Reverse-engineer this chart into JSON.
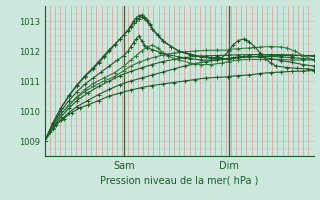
{
  "bg_color": "#cce8dc",
  "grid_color_v": "#e08080",
  "grid_color_h": "#a8d4bc",
  "line_color_dark": "#1a5c28",
  "line_color_medium": "#2d7a3e",
  "ylabel": "Pression niveau de la mer( hPa )",
  "x_tick_labels": [
    "Sam",
    "Dim"
  ],
  "x_tick_positions": [
    0.295,
    0.685
  ],
  "ylim": [
    1008.5,
    1013.5
  ],
  "yticks": [
    1009,
    1010,
    1011,
    1012
  ],
  "y_top_label": "1013",
  "vline_color": "#3a6040",
  "series": [
    [
      0.0,
      1009.0,
      0.02,
      1009.3,
      0.04,
      1009.55,
      0.07,
      1009.75,
      0.1,
      1009.95,
      0.13,
      1010.1,
      0.16,
      1010.2,
      0.2,
      1010.35,
      0.24,
      1010.5,
      0.28,
      1010.6,
      0.32,
      1010.7,
      0.36,
      1010.78,
      0.4,
      1010.85,
      0.44,
      1010.9,
      0.48,
      1010.95,
      0.52,
      1011.0,
      0.56,
      1011.05,
      0.6,
      1011.1,
      0.64,
      1011.12,
      0.68,
      1011.14,
      0.685,
      1011.15,
      0.72,
      1011.18,
      0.76,
      1011.2,
      0.8,
      1011.25,
      0.84,
      1011.28,
      0.88,
      1011.3,
      0.92,
      1011.32,
      0.96,
      1011.33,
      1.0,
      1011.35
    ],
    [
      0.0,
      1009.0,
      0.03,
      1009.4,
      0.06,
      1009.7,
      0.09,
      1009.95,
      0.12,
      1010.15,
      0.16,
      1010.35,
      0.2,
      1010.55,
      0.24,
      1010.72,
      0.28,
      1010.88,
      0.32,
      1011.0,
      0.36,
      1011.1,
      0.4,
      1011.2,
      0.44,
      1011.3,
      0.48,
      1011.4,
      0.52,
      1011.5,
      0.56,
      1011.58,
      0.6,
      1011.65,
      0.64,
      1011.7,
      0.68,
      1011.74,
      0.685,
      1011.75,
      0.72,
      1011.78,
      0.76,
      1011.8,
      0.8,
      1011.82,
      0.84,
      1011.84,
      0.88,
      1011.85,
      0.92,
      1011.85,
      0.96,
      1011.85,
      1.0,
      1011.85
    ],
    [
      0.0,
      1009.0,
      0.03,
      1009.45,
      0.06,
      1009.8,
      0.09,
      1010.1,
      0.12,
      1010.35,
      0.16,
      1010.6,
      0.2,
      1010.82,
      0.24,
      1011.0,
      0.28,
      1011.18,
      0.32,
      1011.32,
      0.36,
      1011.44,
      0.4,
      1011.55,
      0.44,
      1011.65,
      0.48,
      1011.72,
      0.52,
      1011.78,
      0.56,
      1011.82,
      0.6,
      1011.84,
      0.64,
      1011.85,
      0.68,
      1011.86,
      0.685,
      1011.87,
      0.72,
      1011.87,
      0.76,
      1011.88,
      0.8,
      1011.88,
      0.84,
      1011.88,
      0.88,
      1011.88,
      0.92,
      1011.87,
      0.96,
      1011.85,
      1.0,
      1011.82
    ],
    [
      0.0,
      1009.0,
      0.03,
      1009.5,
      0.06,
      1009.9,
      0.09,
      1010.2,
      0.12,
      1010.45,
      0.15,
      1010.65,
      0.18,
      1010.82,
      0.22,
      1011.0,
      0.26,
      1011.15,
      0.295,
      1011.35,
      0.32,
      1011.5,
      0.35,
      1011.62,
      0.38,
      1011.72,
      0.41,
      1011.8,
      0.44,
      1011.87,
      0.48,
      1011.93,
      0.52,
      1011.97,
      0.56,
      1012.0,
      0.6,
      1012.02,
      0.64,
      1012.03,
      0.68,
      1012.03,
      0.685,
      1012.05,
      0.72,
      1012.08,
      0.76,
      1012.1,
      0.8,
      1012.13,
      0.84,
      1012.15,
      0.88,
      1012.13,
      0.9,
      1012.1,
      0.93,
      1012.0,
      0.96,
      1011.85,
      1.0,
      1011.7
    ],
    [
      0.0,
      1009.0,
      0.03,
      1009.5,
      0.06,
      1009.9,
      0.09,
      1010.2,
      0.12,
      1010.48,
      0.15,
      1010.72,
      0.18,
      1010.92,
      0.22,
      1011.1,
      0.26,
      1011.28,
      0.295,
      1011.5,
      0.32,
      1011.7,
      0.34,
      1011.85,
      0.36,
      1012.0,
      0.38,
      1012.12,
      0.4,
      1012.2,
      0.42,
      1012.1,
      0.44,
      1011.95,
      0.46,
      1011.82,
      0.5,
      1011.7,
      0.54,
      1011.6,
      0.58,
      1011.55,
      0.62,
      1011.55,
      0.66,
      1011.6,
      0.685,
      1011.65,
      0.72,
      1011.7,
      0.76,
      1011.72,
      0.8,
      1011.72,
      0.84,
      1011.72,
      0.88,
      1011.72,
      0.92,
      1011.7,
      0.96,
      1011.7,
      1.0,
      1011.7
    ],
    [
      0.0,
      1009.0,
      0.03,
      1009.55,
      0.06,
      1010.0,
      0.09,
      1010.35,
      0.12,
      1010.65,
      0.15,
      1010.9,
      0.18,
      1011.1,
      0.21,
      1011.3,
      0.24,
      1011.5,
      0.27,
      1011.7,
      0.295,
      1011.85,
      0.31,
      1012.0,
      0.32,
      1012.15,
      0.33,
      1012.28,
      0.34,
      1012.4,
      0.35,
      1012.5,
      0.36,
      1012.35,
      0.37,
      1012.2,
      0.38,
      1012.1,
      0.4,
      1012.05,
      0.43,
      1011.95,
      0.46,
      1011.88,
      0.5,
      1011.8,
      0.54,
      1011.75,
      0.58,
      1011.7,
      0.62,
      1011.7,
      0.66,
      1011.72,
      0.685,
      1011.75,
      0.72,
      1011.8,
      0.76,
      1011.82,
      0.8,
      1011.82,
      0.84,
      1011.82,
      0.88,
      1011.8,
      0.92,
      1011.78,
      0.96,
      1011.75,
      1.0,
      1011.72
    ],
    [
      0.0,
      1009.0,
      0.03,
      1009.6,
      0.06,
      1010.1,
      0.09,
      1010.5,
      0.12,
      1010.85,
      0.15,
      1011.15,
      0.18,
      1011.4,
      0.2,
      1011.6,
      0.22,
      1011.8,
      0.24,
      1012.0,
      0.26,
      1012.2,
      0.28,
      1012.4,
      0.295,
      1012.55,
      0.31,
      1012.7,
      0.32,
      1012.85,
      0.33,
      1013.0,
      0.34,
      1013.1,
      0.35,
      1013.18,
      0.36,
      1013.2,
      0.37,
      1013.15,
      0.38,
      1013.05,
      0.39,
      1012.9,
      0.4,
      1012.75,
      0.42,
      1012.55,
      0.44,
      1012.35,
      0.47,
      1012.15,
      0.5,
      1012.0,
      0.54,
      1011.9,
      0.58,
      1011.82,
      0.62,
      1011.78,
      0.66,
      1011.78,
      0.685,
      1012.0,
      0.7,
      1012.2,
      0.72,
      1012.35,
      0.74,
      1012.4,
      0.75,
      1012.38,
      0.76,
      1012.3,
      0.78,
      1012.15,
      0.8,
      1011.95,
      0.82,
      1011.75,
      0.84,
      1011.6,
      0.86,
      1011.5,
      0.9,
      1011.45,
      0.94,
      1011.42,
      0.98,
      1011.4,
      1.0,
      1011.38
    ],
    [
      0.0,
      1009.0,
      0.03,
      1009.6,
      0.06,
      1010.1,
      0.09,
      1010.52,
      0.12,
      1010.88,
      0.15,
      1011.18,
      0.18,
      1011.45,
      0.2,
      1011.65,
      0.22,
      1011.85,
      0.24,
      1012.05,
      0.26,
      1012.22,
      0.28,
      1012.4,
      0.295,
      1012.55,
      0.31,
      1012.68,
      0.32,
      1012.8,
      0.33,
      1012.92,
      0.34,
      1013.0,
      0.35,
      1013.08,
      0.36,
      1013.12,
      0.37,
      1013.1,
      0.38,
      1013.0,
      0.39,
      1012.88,
      0.4,
      1012.72,
      0.42,
      1012.52,
      0.44,
      1012.32,
      0.47,
      1012.15,
      0.5,
      1011.98,
      0.54,
      1011.88,
      0.58,
      1011.8,
      0.62,
      1011.76,
      0.66,
      1011.74,
      0.685,
      1011.75,
      0.7,
      1011.78,
      0.74,
      1011.82,
      0.76,
      1011.82,
      0.8,
      1011.8,
      0.84,
      1011.75,
      0.88,
      1011.68,
      0.92,
      1011.62,
      0.96,
      1011.55,
      1.0,
      1011.5
    ]
  ]
}
